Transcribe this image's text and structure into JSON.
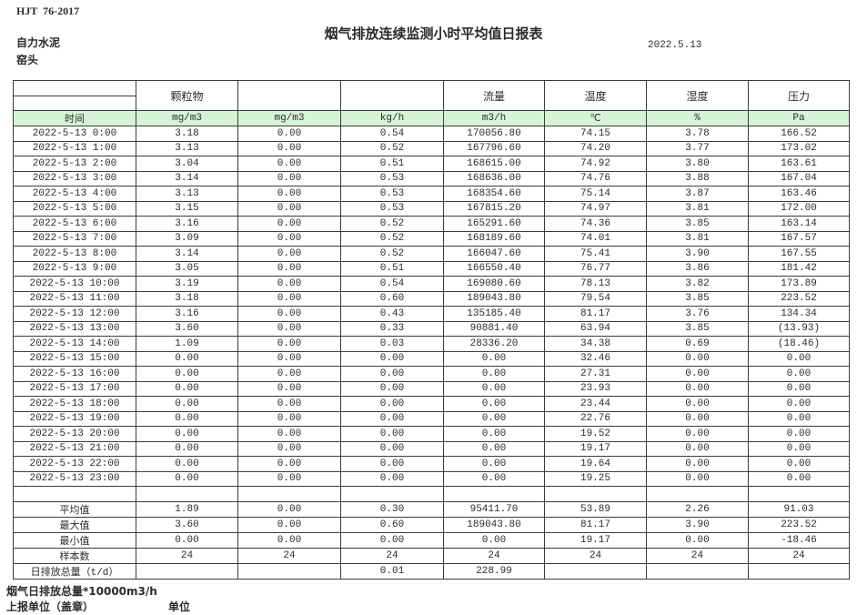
{
  "meta": {
    "standard": "HJT  76-2017",
    "title": "烟气排放连续监测小时平均值日报表",
    "date": "2022.5.13",
    "company": "自力水泥",
    "point": "窑头"
  },
  "table": {
    "group_headers": [
      "",
      "颗粒物",
      "",
      "",
      "流量",
      "温度",
      "湿度",
      "压力"
    ],
    "unit_row": [
      "时间",
      "mg/m3",
      "mg/m3",
      "kg/h",
      "m3/h",
      "℃",
      "%",
      "Pa"
    ],
    "rows": [
      [
        "2022-5-13 0:00",
        "3.18",
        "0.00",
        "0.54",
        "170056.80",
        "74.15",
        "3.78",
        "166.52"
      ],
      [
        "2022-5-13 1:00",
        "3.13",
        "0.00",
        "0.52",
        "167796.60",
        "74.20",
        "3.77",
        "173.02"
      ],
      [
        "2022-5-13 2:00",
        "3.04",
        "0.00",
        "0.51",
        "168615.00",
        "74.92",
        "3.80",
        "163.61"
      ],
      [
        "2022-5-13 3:00",
        "3.14",
        "0.00",
        "0.53",
        "168636.00",
        "74.76",
        "3.88",
        "167.04"
      ],
      [
        "2022-5-13 4:00",
        "3.13",
        "0.00",
        "0.53",
        "168354.60",
        "75.14",
        "3.87",
        "163.46"
      ],
      [
        "2022-5-13 5:00",
        "3.15",
        "0.00",
        "0.53",
        "167815.20",
        "74.97",
        "3.81",
        "172.00"
      ],
      [
        "2022-5-13 6:00",
        "3.16",
        "0.00",
        "0.52",
        "165291.60",
        "74.36",
        "3.85",
        "163.14"
      ],
      [
        "2022-5-13 7:00",
        "3.09",
        "0.00",
        "0.52",
        "168189.60",
        "74.01",
        "3.81",
        "167.57"
      ],
      [
        "2022-5-13 8:00",
        "3.14",
        "0.00",
        "0.52",
        "166047.60",
        "75.41",
        "3.90",
        "167.55"
      ],
      [
        "2022-5-13 9:00",
        "3.05",
        "0.00",
        "0.51",
        "166550.40",
        "76.77",
        "3.86",
        "181.42"
      ],
      [
        "2022-5-13 10:00",
        "3.19",
        "0.00",
        "0.54",
        "169080.60",
        "78.13",
        "3.82",
        "173.89"
      ],
      [
        "2022-5-13 11:00",
        "3.18",
        "0.00",
        "0.60",
        "189043.80",
        "79.54",
        "3.85",
        "223.52"
      ],
      [
        "2022-5-13 12:00",
        "3.16",
        "0.00",
        "0.43",
        "135185.40",
        "81.17",
        "3.76",
        "134.34"
      ],
      [
        "2022-5-13 13:00",
        "3.60",
        "0.00",
        "0.33",
        "90881.40",
        "63.94",
        "3.85",
        "(13.93)"
      ],
      [
        "2022-5-13 14:00",
        "1.09",
        "0.00",
        "0.03",
        "28336.20",
        "34.38",
        "0.69",
        "(18.46)"
      ],
      [
        "2022-5-13 15:00",
        "0.00",
        "0.00",
        "0.00",
        "0.00",
        "32.46",
        "0.00",
        "0.00"
      ],
      [
        "2022-5-13 16:00",
        "0.00",
        "0.00",
        "0.00",
        "0.00",
        "27.31",
        "0.00",
        "0.00"
      ],
      [
        "2022-5-13 17:00",
        "0.00",
        "0.00",
        "0.00",
        "0.00",
        "23.93",
        "0.00",
        "0.00"
      ],
      [
        "2022-5-13 18:00",
        "0.00",
        "0.00",
        "0.00",
        "0.00",
        "23.44",
        "0.00",
        "0.00"
      ],
      [
        "2022-5-13 19:00",
        "0.00",
        "0.00",
        "0.00",
        "0.00",
        "22.76",
        "0.00",
        "0.00"
      ],
      [
        "2022-5-13 20:00",
        "0.00",
        "0.00",
        "0.00",
        "0.00",
        "19.52",
        "0.00",
        "0.00"
      ],
      [
        "2022-5-13 21:00",
        "0.00",
        "0.00",
        "0.00",
        "0.00",
        "19.17",
        "0.00",
        "0.00"
      ],
      [
        "2022-5-13 22:00",
        "0.00",
        "0.00",
        "0.00",
        "0.00",
        "19.64",
        "0.00",
        "0.00"
      ],
      [
        "2022-5-13 23:00",
        "0.00",
        "0.00",
        "0.00",
        "0.00",
        "19.25",
        "0.00",
        "0.00"
      ]
    ],
    "summary": [
      {
        "label": "平均值",
        "values": [
          "1.89",
          "0.00",
          "0.30",
          "95411.70",
          "53.89",
          "2.26",
          "91.03"
        ]
      },
      {
        "label": "最大值",
        "values": [
          "3.60",
          "0.00",
          "0.60",
          "189043.80",
          "81.17",
          "3.90",
          "223.52"
        ]
      },
      {
        "label": "最小值",
        "values": [
          "0.00",
          "0.00",
          "0.00",
          "0.00",
          "19.17",
          "0.00",
          "-18.46"
        ]
      },
      {
        "label": "样本数",
        "values": [
          "24",
          "24",
          "24",
          "24",
          "24",
          "24",
          "24"
        ]
      },
      {
        "label": "日排放总量（t/d）",
        "values": [
          "",
          "",
          "0.01",
          "228.99",
          "",
          "",
          ""
        ]
      }
    ]
  },
  "footer": {
    "note": "烟气日排放总量*10000m3/h",
    "report_unit_label": "上报单位（盖章）",
    "unit_label": "单位"
  },
  "colors": {
    "header_green": "#d6f3d6",
    "negative_red": "#e03a3a",
    "border": "#3c3c3c"
  }
}
